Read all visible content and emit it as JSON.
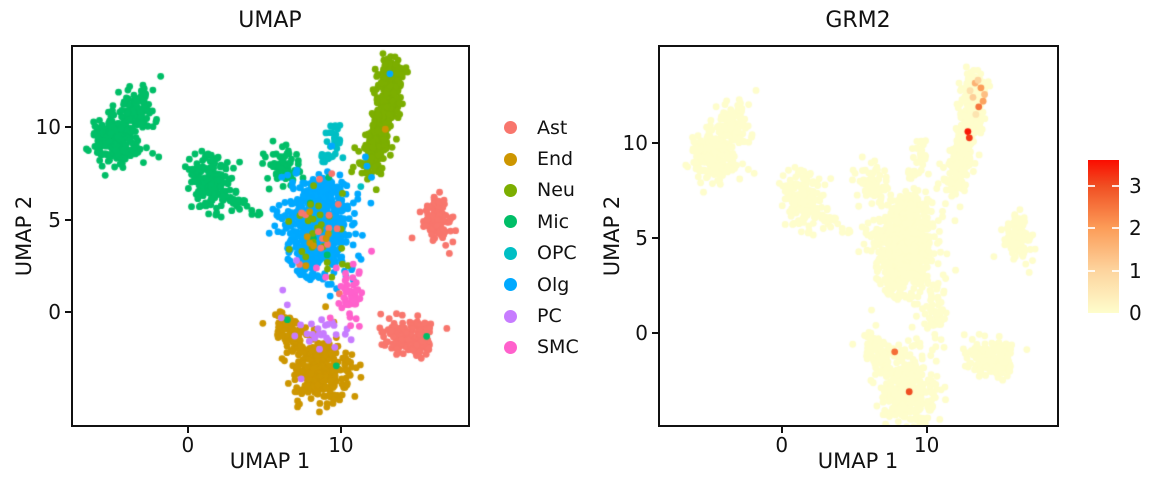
{
  "figure": {
    "background": "#ffffff"
  },
  "chart_data": {
    "type": "scatter",
    "description": "Two-panel UMAP figure: left panel cells colored by cell type, right panel colored by GRM2 expression",
    "panels": [
      {
        "title": "UMAP",
        "xlabel": "UMAP 1",
        "ylabel": "UMAP 2",
        "x_ticks": [
          0,
          10
        ],
        "y_ticks": [
          0,
          5,
          10
        ],
        "xlim": [
          -7.5,
          18.3
        ],
        "ylim": [
          -6.1,
          14.35
        ],
        "color_mode": "celltype",
        "grid": false
      },
      {
        "title": "GRM2",
        "xlabel": "UMAP 1",
        "ylabel": "UMAP 2",
        "x_ticks": [
          0,
          10
        ],
        "y_ticks": [
          0,
          5,
          10
        ],
        "xlim": [
          -8.4,
          19.0
        ],
        "ylim": [
          -4.85,
          15.05
        ],
        "color_mode": "expression",
        "grid": false
      }
    ],
    "legend": {
      "position": "center-between-panels",
      "items": [
        {
          "label": "Ast",
          "color": "#F8766D"
        },
        {
          "label": "End",
          "color": "#CD9600"
        },
        {
          "label": "Neu",
          "color": "#7CAE00"
        },
        {
          "label": "Mic",
          "color": "#00BE67"
        },
        {
          "label": "OPC",
          "color": "#00BFC4"
        },
        {
          "label": "Olg",
          "color": "#00A9FF"
        },
        {
          "label": "PC",
          "color": "#C77CFF"
        },
        {
          "label": "SMC",
          "color": "#FF61CC"
        }
      ]
    },
    "colorbar": {
      "ticks": [
        0,
        1,
        2,
        3
      ],
      "vmax": 3.6,
      "stops": [
        [
          0,
          "#FEFDCC"
        ],
        [
          1,
          "#FDD49E"
        ],
        [
          2,
          "#FC9C58"
        ],
        [
          3,
          "#F04E22"
        ],
        [
          3.6,
          "#FB0D00"
        ]
      ]
    },
    "clusters": [
      {
        "cell": "Mic",
        "kind": "blob",
        "cx": -4.7,
        "cy": 9.3,
        "sx": 0.72,
        "sy": 0.68,
        "n": 190,
        "z": 0
      },
      {
        "cell": "Mic",
        "kind": "blob",
        "cx": -3.35,
        "cy": 11.05,
        "sx": 0.55,
        "sy": 0.62,
        "n": 115,
        "z": 0
      },
      {
        "cell": "Mic",
        "kind": "blob",
        "cx": 1.4,
        "cy": 7.0,
        "sx": 0.68,
        "sy": 0.72,
        "n": 165,
        "z": 0
      },
      {
        "cell": "Mic",
        "kind": "line",
        "x1": 2.2,
        "y1": 6.4,
        "x2": 4.5,
        "y2": 5.35,
        "jx": 0.18,
        "jy": 0.18,
        "n": 30,
        "z": 0
      },
      {
        "cell": "Mic",
        "kind": "blob",
        "cx": 6.3,
        "cy": 7.9,
        "sx": 0.62,
        "sy": 0.52,
        "n": 68,
        "z": 0
      },
      {
        "cell": "Neu",
        "kind": "line",
        "x1": 12.0,
        "y1": 7.6,
        "x2": 13.5,
        "y2": 13.2,
        "jx": 0.4,
        "jy": 0.38,
        "n": 330,
        "z": 0
      },
      {
        "cell": "Neu",
        "kind": "blob",
        "cx": 13.15,
        "cy": 12.5,
        "sx": 0.5,
        "sy": 0.55,
        "n": 55,
        "z": 0
      },
      {
        "cell": "Olg",
        "kind": "blob",
        "cx": 8.55,
        "cy": 4.6,
        "sx": 1.02,
        "sy": 1.12,
        "n": 620,
        "z": 0
      },
      {
        "cell": "Olg",
        "kind": "blob",
        "cx": 8.9,
        "cy": 6.55,
        "sx": 0.6,
        "sy": 0.42,
        "n": 70,
        "z": 0
      },
      {
        "cell": "Olg",
        "kind": "blob",
        "cx": 7.85,
        "cy": 2.95,
        "sx": 0.55,
        "sy": 0.5,
        "n": 55,
        "z": 0
      },
      {
        "cell": "OPC",
        "kind": "blob",
        "cx": 9.5,
        "cy": 9.3,
        "sx": 0.3,
        "sy": 0.4,
        "n": 20,
        "z": 0
      },
      {
        "cell": "OPC",
        "kind": "blob",
        "cx": 9.05,
        "cy": 8.4,
        "sx": 0.22,
        "sy": 0.18,
        "n": 9,
        "z": 0
      },
      {
        "cell": "Ast",
        "kind": "blob",
        "cx": 16.2,
        "cy": 5.0,
        "sx": 0.5,
        "sy": 0.66,
        "n": 120,
        "z": 0
      },
      {
        "cell": "Ast",
        "kind": "blob",
        "cx": 14.55,
        "cy": -1.35,
        "sx": 0.8,
        "sy": 0.5,
        "n": 150,
        "z": 0
      },
      {
        "cell": "End",
        "kind": "blob",
        "cx": 8.7,
        "cy": -3.2,
        "sx": 0.88,
        "sy": 0.82,
        "n": 290,
        "z": 0
      },
      {
        "cell": "End",
        "kind": "blob",
        "cx": 6.5,
        "cy": -0.85,
        "sx": 0.45,
        "sy": 0.48,
        "n": 55,
        "z": 0
      },
      {
        "cell": "End",
        "kind": "blob",
        "cx": 7.35,
        "cy": -1.7,
        "sx": 0.45,
        "sy": 0.5,
        "n": 50,
        "z": 0
      },
      {
        "cell": "Mic",
        "kind": "pts",
        "z": 1,
        "pts": [
          [
            -2.7,
            8.9
          ],
          [
            -2.3,
            8.6
          ],
          [
            -1.9,
            8.4
          ],
          [
            -2.9,
            8.1
          ],
          [
            8.2,
            4.0
          ],
          [
            9.1,
            3.1
          ],
          [
            8.0,
            5.9
          ],
          [
            15.6,
            -1.3
          ],
          [
            9.7,
            -2.9
          ],
          [
            6.5,
            -0.4
          ],
          [
            9.2,
            7.3
          ]
        ]
      },
      {
        "cell": "OPC",
        "kind": "pts",
        "z": 1,
        "pts": [
          [
            11.3,
            6.8
          ],
          [
            9.9,
            9.15
          ],
          [
            8.6,
            5.2
          ],
          [
            9.3,
            4.4
          ]
        ]
      },
      {
        "cell": "Neu",
        "kind": "blob",
        "cx": 8.7,
        "cy": 4.4,
        "sx": 1.0,
        "sy": 1.15,
        "n": 26,
        "z": 1
      },
      {
        "cell": "Neu",
        "kind": "pts",
        "z": 1,
        "pts": [
          [
            10.9,
            8.9
          ],
          [
            11.2,
            8.1
          ],
          [
            10.7,
            7.6
          ],
          [
            11.6,
            9.6
          ],
          [
            10.1,
            2.6
          ],
          [
            9.4,
            1.9
          ]
        ]
      },
      {
        "cell": "Olg",
        "kind": "pts",
        "z": 1,
        "pts": [
          [
            11.7,
            7.9
          ],
          [
            12.0,
            7.3
          ],
          [
            11.6,
            8.4
          ],
          [
            13.2,
            12.9
          ],
          [
            11.1,
            6.4
          ],
          [
            9.4,
            9.0
          ]
        ]
      },
      {
        "cell": "Ast",
        "kind": "blob",
        "cx": 8.6,
        "cy": 4.8,
        "sx": 0.95,
        "sy": 1.1,
        "n": 11,
        "z": 1
      },
      {
        "cell": "Ast",
        "kind": "pts",
        "z": 1,
        "pts": [
          [
            9.4,
            7.5
          ],
          [
            8.6,
            7.2
          ],
          [
            9.9,
            1.0
          ],
          [
            12.6,
            -0.1
          ]
        ]
      },
      {
        "cell": "End",
        "kind": "blob",
        "cx": 8.6,
        "cy": 4.5,
        "sx": 0.9,
        "sy": 1.0,
        "n": 7,
        "z": 1
      },
      {
        "cell": "End",
        "kind": "pts",
        "z": 1,
        "pts": [
          [
            12.9,
            9.9
          ],
          [
            11.0,
            -3.0
          ],
          [
            5.9,
            -0.2
          ],
          [
            9.0,
            0.3
          ],
          [
            4.9,
            -0.6
          ]
        ]
      },
      {
        "cell": "PC",
        "kind": "blob",
        "cx": 8.9,
        "cy": -0.95,
        "sx": 0.72,
        "sy": 0.38,
        "n": 20,
        "z": 1
      },
      {
        "cell": "PC",
        "kind": "pts",
        "z": 1,
        "pts": [
          [
            6.2,
            1.2
          ],
          [
            6.5,
            0.4
          ],
          [
            6.1,
            -0.3
          ],
          [
            7.1,
            2.8
          ],
          [
            10.4,
            -0.9
          ],
          [
            8.6,
            -2.0
          ],
          [
            7.4,
            -3.6
          ],
          [
            9.6,
            -1.9
          ],
          [
            8.3,
            -1.4
          ]
        ]
      },
      {
        "cell": "SMC",
        "kind": "blob",
        "cx": 10.6,
        "cy": 0.75,
        "sx": 0.4,
        "sy": 0.52,
        "n": 48,
        "z": 1
      },
      {
        "cell": "SMC",
        "kind": "pts",
        "z": 1,
        "pts": [
          [
            10.8,
            2.6
          ],
          [
            11.2,
            2.2
          ],
          [
            11.0,
            1.6
          ],
          [
            10.3,
            2.1
          ],
          [
            9.7,
            2.4
          ],
          [
            9.0,
            1.9
          ],
          [
            9.3,
            -0.3
          ],
          [
            10.0,
            1.4
          ],
          [
            8.4,
            2.4
          ],
          [
            12.0,
            3.3
          ]
        ]
      }
    ],
    "expression_highlights": [
      [
        13.35,
        13.15,
        1.6
      ],
      [
        13.55,
        13.3,
        1.0
      ],
      [
        13.75,
        12.9,
        2.0
      ],
      [
        14.0,
        12.55,
        1.4
      ],
      [
        13.9,
        12.2,
        1.9
      ],
      [
        13.6,
        11.9,
        2.5
      ],
      [
        13.2,
        12.4,
        1.1
      ],
      [
        13.0,
        12.75,
        0.7
      ],
      [
        13.4,
        11.5,
        0.6
      ],
      [
        12.85,
        10.6,
        3.5
      ],
      [
        12.95,
        10.27,
        3.2
      ],
      [
        7.8,
        -1.0,
        2.6
      ],
      [
        8.8,
        -3.1,
        3.0
      ]
    ]
  }
}
